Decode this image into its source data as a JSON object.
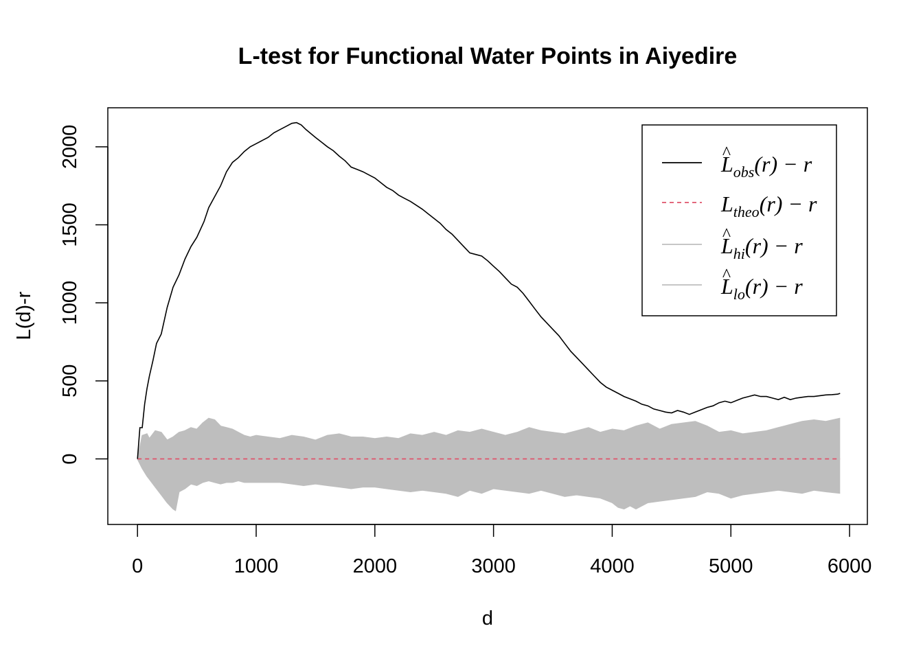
{
  "chart_data": {
    "type": "line",
    "title": "L-test for Functional Water Points in Aiyedire",
    "xlabel": "d",
    "ylabel": "L(d)-r",
    "xlim": [
      -250,
      6150
    ],
    "ylim": [
      -420,
      2250
    ],
    "xticks": [
      0,
      1000,
      2000,
      3000,
      4000,
      5000,
      6000
    ],
    "xtick_labels": [
      "0",
      "1000",
      "2000",
      "3000",
      "4000",
      "5000",
      "6000"
    ],
    "yticks": [
      0,
      500,
      1000,
      1500,
      2000
    ],
    "ytick_labels": [
      "0",
      "500",
      "1000",
      "1500",
      "2000"
    ],
    "grid": false,
    "legend_position": "top-right",
    "colors": {
      "obs": "#000000",
      "theo": "#DF536B",
      "envelope": "#BEBEBE"
    },
    "legend": [
      {
        "base": "L",
        "hat": true,
        "sub": "obs",
        "suffix": "(r) − r",
        "style": "solid",
        "color": "#000000"
      },
      {
        "base": "L",
        "hat": false,
        "sub": "theo",
        "suffix": "(r) − r",
        "style": "dashed",
        "color": "#DF536B"
      },
      {
        "base": "L",
        "hat": true,
        "sub": "hi",
        "suffix": "(r) − r",
        "style": "solid",
        "color": "#BEBEBE"
      },
      {
        "base": "L",
        "hat": true,
        "sub": "lo",
        "suffix": "(r) − r",
        "style": "solid",
        "color": "#BEBEBE"
      }
    ],
    "series": [
      {
        "key": "obs",
        "x": [
          0,
          20,
          40,
          60,
          80,
          100,
          130,
          160,
          200,
          250,
          300,
          350,
          400,
          450,
          500,
          560,
          600,
          650,
          700,
          750,
          800,
          850,
          900,
          950,
          1000,
          1050,
          1100,
          1150,
          1200,
          1250,
          1300,
          1340,
          1380,
          1420,
          1460,
          1500,
          1550,
          1600,
          1650,
          1700,
          1750,
          1800,
          1850,
          1900,
          1950,
          2000,
          2050,
          2100,
          2150,
          2200,
          2250,
          2300,
          2350,
          2400,
          2450,
          2500,
          2550,
          2600,
          2650,
          2700,
          2750,
          2800,
          2850,
          2900,
          2950,
          3000,
          3050,
          3100,
          3150,
          3200,
          3250,
          3300,
          3350,
          3400,
          3450,
          3500,
          3550,
          3600,
          3650,
          3700,
          3750,
          3800,
          3850,
          3900,
          3950,
          4000,
          4050,
          4100,
          4150,
          4200,
          4250,
          4300,
          4350,
          4400,
          4450,
          4500,
          4550,
          4600,
          4650,
          4700,
          4750,
          4800,
          4850,
          4900,
          4950,
          5000,
          5050,
          5100,
          5150,
          5200,
          5250,
          5300,
          5350,
          5400,
          5450,
          5500,
          5550,
          5600,
          5650,
          5700,
          5750,
          5800,
          5850,
          5900,
          5920
        ],
        "y": [
          0,
          200,
          200,
          350,
          450,
          530,
          630,
          740,
          800,
          970,
          1100,
          1180,
          1280,
          1360,
          1420,
          1520,
          1610,
          1680,
          1750,
          1840,
          1900,
          1930,
          1970,
          2000,
          2020,
          2040,
          2060,
          2090,
          2110,
          2130,
          2150,
          2155,
          2140,
          2110,
          2085,
          2060,
          2030,
          2000,
          1975,
          1940,
          1910,
          1870,
          1855,
          1840,
          1820,
          1800,
          1770,
          1740,
          1720,
          1690,
          1670,
          1650,
          1625,
          1600,
          1570,
          1540,
          1510,
          1470,
          1440,
          1400,
          1360,
          1320,
          1310,
          1300,
          1270,
          1235,
          1200,
          1160,
          1120,
          1100,
          1060,
          1010,
          960,
          910,
          870,
          830,
          790,
          740,
          690,
          650,
          610,
          570,
          530,
          490,
          460,
          440,
          420,
          400,
          385,
          370,
          350,
          340,
          320,
          310,
          300,
          295,
          310,
          300,
          285,
          300,
          315,
          330,
          340,
          360,
          370,
          360,
          375,
          390,
          400,
          410,
          400,
          400,
          390,
          380,
          395,
          380,
          390,
          395,
          400,
          400,
          405,
          410,
          412,
          415,
          420
        ]
      },
      {
        "key": "theo",
        "x": [
          0,
          5920
        ],
        "y": [
          0,
          0
        ]
      },
      {
        "key": "hi",
        "x": [
          0,
          40,
          80,
          100,
          150,
          200,
          250,
          300,
          350,
          400,
          450,
          500,
          550,
          600,
          650,
          700,
          750,
          800,
          850,
          900,
          950,
          1000,
          1100,
          1200,
          1300,
          1400,
          1500,
          1600,
          1700,
          1800,
          1900,
          2000,
          2100,
          2200,
          2300,
          2400,
          2500,
          2600,
          2700,
          2800,
          2900,
          3000,
          3100,
          3200,
          3300,
          3400,
          3500,
          3600,
          3700,
          3800,
          3900,
          4000,
          4100,
          4200,
          4300,
          4400,
          4500,
          4600,
          4700,
          4800,
          4900,
          5000,
          5100,
          5200,
          5300,
          5400,
          5500,
          5600,
          5700,
          5800,
          5920
        ],
        "y": [
          0,
          150,
          160,
          130,
          180,
          170,
          120,
          140,
          170,
          180,
          200,
          190,
          230,
          260,
          250,
          210,
          200,
          190,
          170,
          150,
          140,
          150,
          140,
          130,
          150,
          140,
          120,
          150,
          160,
          140,
          140,
          130,
          140,
          130,
          160,
          150,
          170,
          150,
          180,
          170,
          190,
          170,
          150,
          170,
          200,
          180,
          170,
          160,
          180,
          200,
          170,
          190,
          180,
          210,
          230,
          190,
          220,
          230,
          240,
          210,
          170,
          180,
          160,
          170,
          180,
          200,
          220,
          240,
          250,
          240,
          260
        ]
      },
      {
        "key": "lo",
        "x": [
          0,
          40,
          80,
          100,
          150,
          200,
          250,
          300,
          320,
          350,
          400,
          450,
          500,
          550,
          600,
          650,
          700,
          750,
          800,
          850,
          900,
          950,
          1000,
          1100,
          1200,
          1300,
          1400,
          1500,
          1600,
          1700,
          1800,
          1900,
          2000,
          2100,
          2200,
          2300,
          2400,
          2500,
          2600,
          2700,
          2800,
          2900,
          3000,
          3100,
          3200,
          3300,
          3400,
          3500,
          3600,
          3700,
          3800,
          3900,
          4000,
          4050,
          4100,
          4150,
          4200,
          4300,
          4400,
          4500,
          4600,
          4700,
          4800,
          4900,
          5000,
          5100,
          5200,
          5300,
          5400,
          5500,
          5600,
          5700,
          5800,
          5920
        ],
        "y": [
          0,
          -60,
          -110,
          -130,
          -180,
          -230,
          -280,
          -320,
          -330,
          -210,
          -190,
          -160,
          -170,
          -150,
          -140,
          -150,
          -160,
          -150,
          -150,
          -140,
          -150,
          -150,
          -150,
          -150,
          -150,
          -160,
          -170,
          -160,
          -170,
          -180,
          -190,
          -180,
          -180,
          -190,
          -200,
          -210,
          -200,
          -210,
          -220,
          -240,
          -200,
          -220,
          -190,
          -200,
          -210,
          -220,
          -200,
          -220,
          -240,
          -230,
          -240,
          -250,
          -280,
          -310,
          -320,
          -300,
          -320,
          -280,
          -270,
          -260,
          -250,
          -240,
          -210,
          -220,
          -250,
          -230,
          -220,
          -210,
          -200,
          -210,
          -220,
          -200,
          -210,
          -220
        ]
      }
    ]
  }
}
